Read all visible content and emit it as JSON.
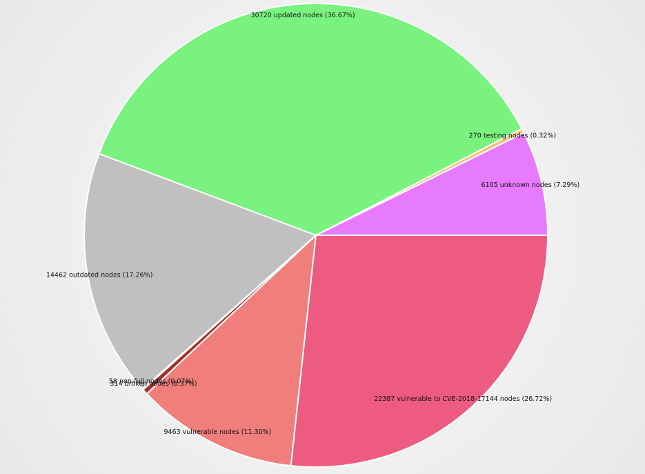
{
  "chart_data": {
    "type": "pie",
    "categories": [
      "6105 unknown nodes (7.29%)",
      "270 testing nodes (0.32%)",
      "30720 updated nodes (36.67%)",
      "14462 outdated nodes (17.26%)",
      "58 non-full nodes (0.07%)",
      "314 broken nodes (0.37%)",
      "9463 vulnerable nodes (11.30%)",
      "22387 vulnerable to CVE-2018-17144 nodes (26.72%)"
    ],
    "values": [
      6105,
      270,
      30720,
      14462,
      58,
      314,
      9463,
      22387
    ],
    "colors": [
      "#e77bff",
      "#f5c27a",
      "#7af27f",
      "#c0c0c0",
      "#d9a0a0",
      "#a3302a",
      "#f07f7c",
      "#ee5b80"
    ]
  }
}
